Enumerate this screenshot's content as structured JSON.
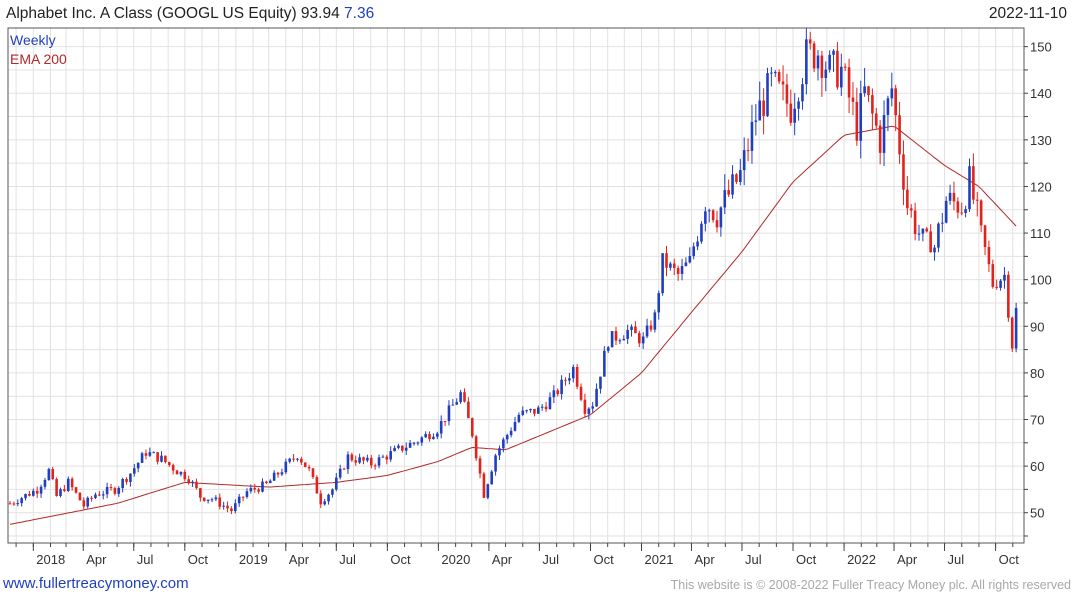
{
  "header": {
    "title": "Alphabet Inc. A Class (GOOGL US Equity)",
    "last_price": "93.94",
    "change": "7.36",
    "date": "2022-11-10"
  },
  "footer": {
    "site_link": "www.fullertreacymoney.com",
    "copyright": "This website is © 2008-2022 Fuller Treacy Money plc. All rights reserved"
  },
  "colors": {
    "up": "#1f3fbf",
    "down": "#e0231c",
    "ema": "#b02a2a",
    "grid": "#e2e2e2",
    "axis": "#444444"
  },
  "chart_data": {
    "type": "candlestick",
    "frequency": "Weekly",
    "legend": [
      "Weekly",
      "EMA 200"
    ],
    "legend_position": "top-left",
    "grid": true,
    "y_axis": {
      "side": "right",
      "ylim": [
        43.5,
        154
      ],
      "ticks": [
        50,
        60,
        70,
        80,
        90,
        100,
        110,
        120,
        130,
        140,
        150
      ]
    },
    "x_axis": {
      "ticks": [
        {
          "label": "2018",
          "date": "2018-01-01"
        },
        {
          "label": "Apr",
          "date": "2018-04-01"
        },
        {
          "label": "Jul",
          "date": "2018-07-01"
        },
        {
          "label": "Oct",
          "date": "2018-10-01"
        },
        {
          "label": "2019",
          "date": "2019-01-01"
        },
        {
          "label": "Apr",
          "date": "2019-04-01"
        },
        {
          "label": "Jul",
          "date": "2019-07-01"
        },
        {
          "label": "Oct",
          "date": "2019-10-01"
        },
        {
          "label": "2020",
          "date": "2020-01-01"
        },
        {
          "label": "Apr",
          "date": "2020-04-01"
        },
        {
          "label": "Jul",
          "date": "2020-07-01"
        },
        {
          "label": "Oct",
          "date": "2020-10-01"
        },
        {
          "label": "2021",
          "date": "2021-01-01"
        },
        {
          "label": "Apr",
          "date": "2021-04-01"
        },
        {
          "label": "Jul",
          "date": "2021-07-01"
        },
        {
          "label": "Oct",
          "date": "2021-10-01"
        },
        {
          "label": "2022",
          "date": "2022-01-01"
        },
        {
          "label": "Apr",
          "date": "2022-04-01"
        },
        {
          "label": "Jul",
          "date": "2022-07-01"
        },
        {
          "label": "Oct",
          "date": "2022-10-01"
        }
      ],
      "range": [
        "2017-11-20",
        "2022-11-14"
      ]
    },
    "price_anchors": [
      [
        "2017-11-20",
        52.0
      ],
      [
        "2018-01-08",
        55.0
      ],
      [
        "2018-01-29",
        59.0
      ],
      [
        "2018-02-12",
        53.5
      ],
      [
        "2018-03-05",
        56.5
      ],
      [
        "2018-04-02",
        51.5
      ],
      [
        "2018-04-23",
        54.0
      ],
      [
        "2018-05-28",
        55.0
      ],
      [
        "2018-06-25",
        58.5
      ],
      [
        "2018-07-23",
        63.0
      ],
      [
        "2018-08-20",
        61.5
      ],
      [
        "2018-09-17",
        59.0
      ],
      [
        "2018-10-08",
        57.5
      ],
      [
        "2018-10-29",
        53.5
      ],
      [
        "2018-11-19",
        53.0
      ],
      [
        "2018-12-24",
        50.5
      ],
      [
        "2019-01-21",
        54.5
      ],
      [
        "2019-02-25",
        56.0
      ],
      [
        "2019-04-22",
        62.5
      ],
      [
        "2019-05-13",
        59.0
      ],
      [
        "2019-06-03",
        52.5
      ],
      [
        "2019-06-24",
        55.0
      ],
      [
        "2019-07-22",
        62.0
      ],
      [
        "2019-09-02",
        60.5
      ],
      [
        "2019-10-21",
        63.5
      ],
      [
        "2019-11-25",
        65.5
      ],
      [
        "2019-12-30",
        68.0
      ],
      [
        "2020-02-10",
        75.5
      ],
      [
        "2020-03-02",
        67.0
      ],
      [
        "2020-03-23",
        54.0
      ],
      [
        "2020-04-13",
        62.5
      ],
      [
        "2020-05-25",
        71.0
      ],
      [
        "2020-06-29",
        72.0
      ],
      [
        "2020-07-27",
        75.0
      ],
      [
        "2020-08-31",
        81.0
      ],
      [
        "2020-09-21",
        72.5
      ],
      [
        "2020-10-05",
        73.5
      ],
      [
        "2020-11-02",
        87.0
      ],
      [
        "2020-12-07",
        89.0
      ],
      [
        "2021-01-04",
        87.0
      ],
      [
        "2021-01-25",
        92.0
      ],
      [
        "2021-02-08",
        104.0
      ],
      [
        "2021-03-08",
        101.0
      ],
      [
        "2021-03-29",
        104.0
      ],
      [
        "2021-04-26",
        117.0
      ],
      [
        "2021-05-17",
        114.0
      ],
      [
        "2021-06-28",
        122.5
      ],
      [
        "2021-07-26",
        135.0
      ],
      [
        "2021-08-23",
        142.0
      ],
      [
        "2021-09-27",
        137.0
      ],
      [
        "2021-10-25",
        148.0
      ],
      [
        "2021-11-15",
        149.0
      ],
      [
        "2021-12-06",
        145.0
      ],
      [
        "2021-12-27",
        145.0
      ],
      [
        "2022-01-24",
        133.0
      ],
      [
        "2022-02-07",
        140.0
      ],
      [
        "2022-03-07",
        130.0
      ],
      [
        "2022-03-28",
        141.0
      ],
      [
        "2022-04-25",
        116.0
      ],
      [
        "2022-05-16",
        110.0
      ],
      [
        "2022-06-13",
        107.0
      ],
      [
        "2022-07-04",
        117.0
      ],
      [
        "2022-08-01",
        116.0
      ],
      [
        "2022-08-15",
        121.0
      ],
      [
        "2022-09-05",
        110.0
      ],
      [
        "2022-09-26",
        99.0
      ],
      [
        "2022-10-17",
        101.0
      ],
      [
        "2022-10-31",
        86.0
      ],
      [
        "2022-11-07",
        93.94
      ]
    ],
    "ema_anchors": [
      [
        "2017-11-20",
        47.5
      ],
      [
        "2018-06-01",
        52.0
      ],
      [
        "2018-10-01",
        56.5
      ],
      [
        "2019-03-01",
        55.5
      ],
      [
        "2019-07-01",
        56.5
      ],
      [
        "2019-10-01",
        58.0
      ],
      [
        "2020-01-01",
        61.0
      ],
      [
        "2020-03-01",
        64.0
      ],
      [
        "2020-05-01",
        63.5
      ],
      [
        "2020-10-01",
        71.0
      ],
      [
        "2021-01-01",
        80.0
      ],
      [
        "2021-04-01",
        93.0
      ],
      [
        "2021-07-01",
        106.0
      ],
      [
        "2021-10-01",
        121.0
      ],
      [
        "2022-01-01",
        131.0
      ],
      [
        "2022-04-01",
        133.0
      ],
      [
        "2022-07-01",
        124.5
      ],
      [
        "2022-09-01",
        120.0
      ],
      [
        "2022-11-07",
        111.5
      ]
    ]
  }
}
